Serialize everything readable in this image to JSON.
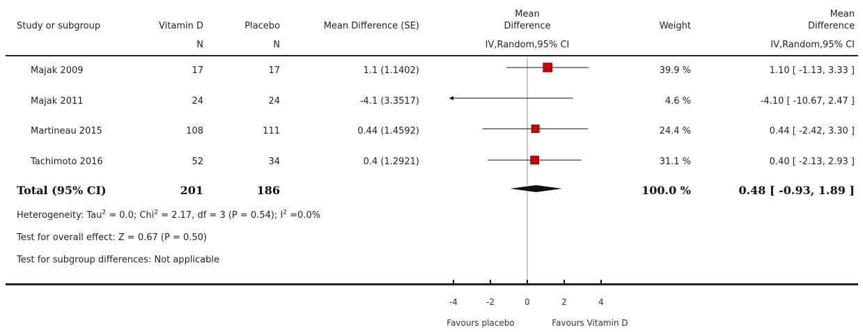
{
  "columns": {
    "study": "Study or subgroup",
    "vitd": "Vitamin D",
    "placebo": "Placebo",
    "md_se": "Mean Difference (SE)",
    "plot_top": "Mean",
    "plot_bottom": "Difference",
    "weight": "Weight",
    "md_top": "Mean",
    "md_bottom": "Difference",
    "vitd_sub": "N",
    "placebo_sub": "N",
    "plot_method": "IV,Random,95% CI",
    "md_method": "IV,Random,95% CI"
  },
  "studies": [
    {
      "name": "Majak 2009",
      "vitd_n": "17",
      "placebo_n": "17",
      "md_se": "1.1 (1.1402)",
      "weight": "39.9 %",
      "ci_text": "1.10 [ -1.13, 3.33 ]"
    },
    {
      "name": "Majak 2011",
      "vitd_n": "24",
      "placebo_n": "24",
      "md_se": "-4.1 (3.3517)",
      "weight": "4.6 %",
      "ci_text": "-4.10 [ -10.67, 2.47 ]"
    },
    {
      "name": "Martineau 2015",
      "vitd_n": "108",
      "placebo_n": "111",
      "md_se": "0.44 (1.4592)",
      "weight": "24.4 %",
      "ci_text": "0.44 [ -2.42, 3.30 ]"
    },
    {
      "name": "Tachimoto 2016",
      "vitd_n": "52",
      "placebo_n": "34",
      "md_se": "0.4 (1.2921)",
      "weight": "31.1 %",
      "ci_text": "0.40 [ -2.13, 2.93 ]"
    }
  ],
  "total": {
    "label": "Total (95% CI)",
    "vitd_n": "201",
    "placebo_n": "186",
    "weight": "100.0 %",
    "ci_text": "0.48 [ -0.93, 1.89 ]"
  },
  "notes": {
    "het_prefix": "Heterogeneity: Tau",
    "het_sup1": "2",
    "het_mid": " = 0.0; Chi",
    "het_sup2": "2",
    "het_mid2": " = 2.17, df = 3 (P = 0.54); I",
    "het_sup3": "2",
    "het_suffix": " =0.0%",
    "overall": "Test for overall effect: Z = 0.67 (P = 0.50)",
    "subgroup": "Test for subgroup differences: Not applicable"
  },
  "chart_data": {
    "type": "forest",
    "xlim": [
      -4,
      4
    ],
    "xticks": [
      -4,
      -2,
      0,
      2,
      4
    ],
    "xlabel_left": "Favours placebo",
    "xlabel_right": "Favours Vitamin D",
    "square_color": "#cc0000",
    "studies": [
      {
        "name": "Majak 2009",
        "estimate": 1.1,
        "ci_low": -1.13,
        "ci_high": 3.33,
        "weight": 39.9
      },
      {
        "name": "Majak 2011",
        "estimate": -4.1,
        "ci_low": -10.67,
        "ci_high": 2.47,
        "weight": 4.6
      },
      {
        "name": "Martineau 2015",
        "estimate": 0.44,
        "ci_low": -2.42,
        "ci_high": 3.3,
        "weight": 24.4
      },
      {
        "name": "Tachimoto 2016",
        "estimate": 0.4,
        "ci_low": -2.13,
        "ci_high": 2.93,
        "weight": 31.1
      }
    ],
    "pooled": {
      "estimate": 0.48,
      "ci_low": -0.93,
      "ci_high": 1.89,
      "weight": 100.0
    }
  }
}
